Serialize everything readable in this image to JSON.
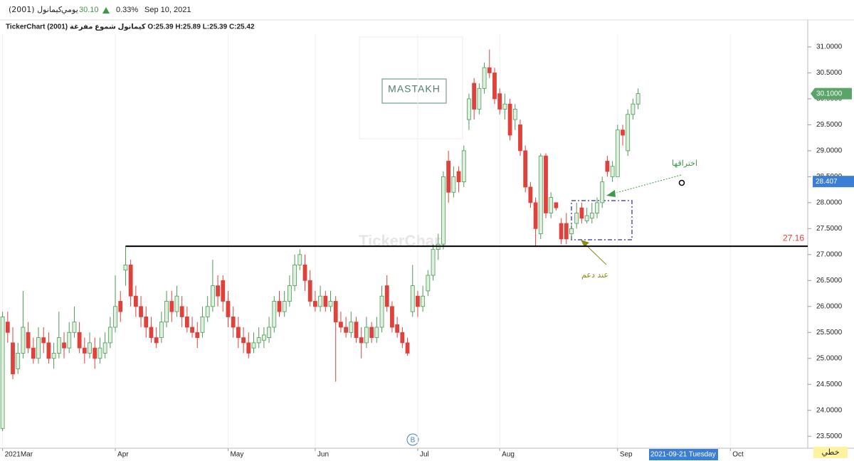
{
  "header": {
    "symbol": "كيمانول (2001)",
    "period": "يومي",
    "price": "30.10",
    "change": "0.33%",
    "date": "Sep 10, 2021",
    "info": "TickerChart كيمانول شموع مفرغة (2001) O:25.39 H:25.89 L:25.39 C:25.42"
  },
  "chart_data": {
    "type": "candlestick",
    "up_color": "#4c9a55",
    "up_fill": "#dff0df",
    "down_color": "#e0413a",
    "open": [
      23.65,
      25.7,
      25.3,
      24.8,
      25.1,
      25.5,
      25.2,
      25.0,
      25.4,
      25.3,
      25.0,
      25.1,
      25.3,
      25.2,
      25.5,
      25.5,
      25.2,
      25.1,
      25.2,
      25.0,
      25.1,
      25.3,
      25.6,
      26.1,
      26.7,
      26.8,
      26.2,
      26.0,
      25.8,
      25.6,
      25.4,
      25.4,
      25.7,
      26.1,
      25.9,
      26.0,
      25.8,
      25.6,
      25.5,
      25.5,
      25.8,
      26.0,
      26.4,
      26.5,
      26.1,
      25.8,
      25.6,
      25.4,
      25.3,
      25.2,
      25.3,
      25.35,
      25.4,
      25.6,
      26.1,
      25.9,
      26.1,
      26.4,
      26.8,
      26.8,
      26.5,
      26.1,
      26.0,
      26.2,
      26.0,
      26.1,
      25.7,
      25.6,
      25.5,
      25.7,
      25.4,
      25.3,
      25.6,
      25.4,
      25.6,
      26.4,
      26.0,
      25.65,
      25.5,
      25.3,
      25.9,
      26.2,
      26.0,
      26.3,
      26.6,
      27.1,
      27.2,
      28.8,
      28.2,
      28.6,
      28.4,
      29.6,
      30.3,
      29.8,
      30.2,
      30.6,
      30.5,
      30.1,
      29.8,
      29.9,
      29.6,
      29.5,
      29.0,
      28.3,
      28.0,
      27.4,
      28.9,
      27.8,
      28.0,
      27.6,
      27.6,
      27.4,
      27.6,
      27.9,
      27.65,
      27.7,
      27.8,
      28.0,
      28.8,
      28.5,
      28.5,
      29.4,
      29.0,
      29.7,
      29.9
    ],
    "high": [
      25.9,
      25.9,
      25.6,
      25.3,
      26.3,
      25.7,
      25.4,
      25.6,
      25.6,
      25.5,
      25.3,
      25.9,
      25.5,
      25.7,
      26.0,
      25.7,
      25.4,
      25.5,
      25.4,
      25.4,
      25.5,
      25.8,
      26.6,
      26.3,
      27.16,
      26.9,
      26.4,
      26.2,
      26.0,
      25.8,
      25.6,
      25.9,
      26.3,
      26.3,
      26.4,
      26.2,
      26.0,
      25.8,
      25.7,
      26.0,
      26.2,
      26.9,
      26.6,
      26.6,
      26.3,
      26.0,
      25.8,
      25.6,
      25.5,
      25.5,
      25.6,
      25.6,
      25.8,
      26.2,
      26.3,
      26.3,
      26.6,
      27.0,
      27.1,
      27.0,
      26.7,
      26.3,
      26.4,
      26.3,
      26.3,
      26.2,
      25.9,
      25.8,
      25.9,
      25.8,
      25.6,
      25.8,
      25.7,
      25.8,
      26.4,
      26.6,
      26.1,
      25.8,
      25.6,
      25.4,
      26.8,
      26.3,
      26.4,
      26.7,
      27.2,
      27.4,
      28.6,
      29.0,
      28.7,
      28.7,
      29.1,
      30.1,
      30.4,
      30.3,
      30.7,
      30.95,
      30.6,
      30.2,
      30.1,
      30.0,
      29.9,
      29.6,
      29.1,
      28.4,
      28.1,
      28.95,
      28.95,
      28.2,
      28.0,
      27.7,
      27.8,
      27.6,
      28.0,
      28.0,
      27.9,
      28.0,
      28.1,
      28.5,
      28.9,
      28.8,
      29.5,
      29.5,
      29.8,
      30.0,
      30.2
    ],
    "low": [
      23.6,
      25.3,
      24.6,
      24.7,
      25.0,
      25.1,
      24.9,
      24.9,
      25.1,
      24.9,
      24.8,
      25.0,
      25.0,
      25.1,
      25.4,
      25.1,
      24.9,
      25.0,
      24.8,
      24.9,
      25.0,
      25.2,
      25.5,
      25.7,
      26.4,
      26.0,
      25.8,
      25.6,
      25.4,
      25.3,
      25.2,
      25.3,
      25.6,
      25.7,
      25.8,
      25.6,
      25.5,
      25.4,
      25.2,
      25.4,
      25.7,
      25.9,
      26.0,
      25.9,
      25.6,
      25.4,
      25.2,
      25.1,
      25.0,
      25.1,
      25.2,
      25.2,
      25.3,
      25.5,
      25.8,
      25.8,
      26.0,
      26.3,
      26.7,
      26.3,
      26.0,
      25.9,
      25.9,
      25.9,
      25.9,
      24.55,
      25.5,
      25.4,
      25.4,
      25.3,
      25.0,
      25.2,
      25.3,
      25.3,
      25.5,
      25.9,
      25.5,
      25.4,
      25.2,
      25.05,
      25.8,
      25.8,
      25.9,
      26.2,
      26.5,
      26.9,
      27.1,
      28.0,
      28.1,
      28.2,
      28.3,
      29.4,
      29.6,
      29.7,
      30.1,
      30.4,
      29.9,
      29.7,
      29.6,
      29.2,
      29.4,
      28.9,
      28.2,
      27.9,
      27.15,
      27.3,
      27.7,
      27.7,
      27.85,
      27.2,
      27.2,
      27.3,
      27.5,
      27.6,
      27.6,
      27.6,
      27.7,
      27.9,
      28.5,
      28.4,
      28.5,
      29.1,
      28.9,
      29.6,
      29.8
    ],
    "close": [
      25.8,
      25.5,
      24.7,
      25.1,
      25.6,
      25.2,
      25.0,
      25.4,
      25.3,
      25.0,
      25.1,
      25.4,
      25.2,
      25.5,
      25.7,
      25.2,
      25.1,
      25.3,
      25.0,
      25.2,
      25.3,
      25.6,
      26.0,
      25.9,
      26.8,
      26.2,
      26.0,
      25.8,
      25.6,
      25.4,
      25.3,
      25.7,
      26.1,
      25.9,
      26.2,
      25.8,
      25.6,
      25.5,
      25.4,
      25.8,
      26.0,
      26.4,
      26.2,
      26.1,
      25.8,
      25.6,
      25.4,
      25.3,
      25.1,
      25.3,
      25.4,
      25.45,
      25.6,
      26.1,
      25.9,
      26.1,
      26.4,
      26.8,
      27.0,
      26.5,
      26.1,
      26.0,
      26.2,
      26.0,
      26.1,
      25.7,
      25.6,
      25.5,
      25.7,
      25.4,
      25.3,
      25.6,
      25.4,
      25.6,
      26.2,
      26.0,
      25.6,
      25.5,
      25.3,
      25.1,
      26.4,
      26.0,
      26.2,
      26.6,
      27.1,
      27.2,
      28.5,
      28.2,
      28.5,
      28.4,
      29.0,
      30.0,
      29.8,
      30.2,
      30.6,
      30.5,
      30.0,
      29.8,
      29.9,
      29.3,
      29.8,
      29.0,
      28.3,
      28.0,
      27.5,
      28.9,
      27.8,
      28.1,
      27.9,
      27.3,
      27.3,
      27.5,
      27.8,
      27.7,
      27.75,
      27.8,
      28.0,
      28.4,
      28.6,
      28.7,
      29.4,
      29.3,
      29.7,
      29.9,
      30.1
    ],
    "xlim": [
      -0.5,
      157.1
    ],
    "xticks": [
      {
        "value": 0,
        "label": "2021Mar"
      },
      {
        "value": 22,
        "label": "Apr"
      },
      {
        "value": 44,
        "label": "May"
      },
      {
        "value": 61,
        "label": "Jun"
      },
      {
        "value": 81,
        "label": "Jul"
      },
      {
        "value": 97,
        "label": "Aug"
      },
      {
        "value": 120,
        "label": "Sep"
      },
      {
        "value": 142,
        "label": "Oct"
      }
    ],
    "ylim": [
      23.27,
      31.52
    ],
    "yticks": [
      {
        "value": 23.5,
        "label": "23.5000"
      },
      {
        "value": 24,
        "label": "24.0000"
      },
      {
        "value": 24.5,
        "label": "24.5000"
      },
      {
        "value": 25,
        "label": "25.0000"
      },
      {
        "value": 25.5,
        "label": "25.5000"
      },
      {
        "value": 26,
        "label": "26.0000"
      },
      {
        "value": 26.5,
        "label": "26.5000"
      },
      {
        "value": 27,
        "label": "27.0000"
      },
      {
        "value": 27.5,
        "label": "27.5000"
      },
      {
        "value": 28,
        "label": "28.0000"
      },
      {
        "value": 28.5,
        "label": "28.5000"
      },
      {
        "value": 29,
        "label": "29.0000"
      },
      {
        "value": 29.5,
        "label": "29.5000"
      },
      {
        "value": 30,
        "label": "30.0000"
      },
      {
        "value": 30.5,
        "label": "30.5000"
      },
      {
        "value": 31,
        "label": "31.0000"
      }
    ],
    "level": {
      "value": 27.16,
      "color": "#e0413a"
    },
    "last_price": {
      "value": 30.1,
      "label": "30.1000",
      "color": "#5aa469"
    },
    "crosshair": {
      "price": 28.407,
      "date": "2021-09-21 Tuesday",
      "color": "#3b7fd4"
    },
    "annotations": [
      {
        "text": "اختراقها",
        "color": "#3a9a4a"
      },
      {
        "text": "عند دعم",
        "color": "#8a8a10"
      }
    ],
    "watermark": "TickerChart",
    "logo": "MASTAKH",
    "marker": "B",
    "style_label": "خطي"
  }
}
